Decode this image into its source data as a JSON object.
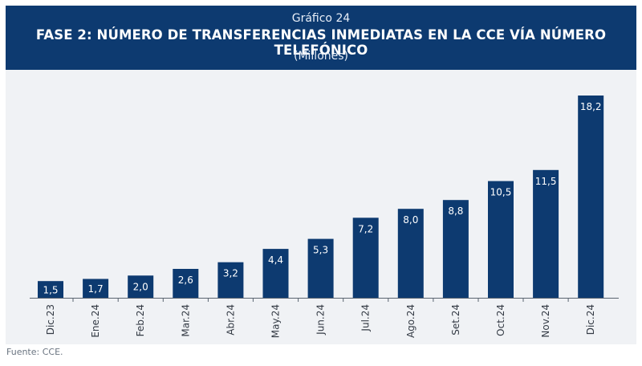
{
  "header": {
    "kicker": "Gráfico 24",
    "title": "FASE 2: NÚMERO DE TRANSFERENCIAS INMEDIATAS EN LA CCE VÍA NÚMERO TELEFÓNICO",
    "subtitle": "(Millones)"
  },
  "source": "Fuente: CCE.",
  "colors": {
    "header_bg": "#0d3a70",
    "bar": "#0d3a70",
    "panel_bg": "#f0f2f5",
    "label_text": "#ffffff"
  },
  "chart_data": {
    "type": "bar",
    "title": "FASE 2: NÚMERO DE TRANSFERENCIAS INMEDIATAS EN LA CCE VÍA NÚMERO TELEFÓNICO",
    "subtitle": "(Millones)",
    "categories": [
      "Dic.23",
      "Ene.24",
      "Feb.24",
      "Mar.24",
      "Abr.24",
      "May.24",
      "Jun.24",
      "Jul.24",
      "Ago.24",
      "Set.24",
      "Oct.24",
      "Nov.24",
      "Dic.24"
    ],
    "values": [
      1.5,
      1.7,
      2.0,
      2.6,
      3.2,
      4.4,
      5.3,
      7.2,
      8.0,
      8.8,
      10.5,
      11.5,
      18.2
    ],
    "value_labels": [
      "1,5",
      "1,7",
      "2,0",
      "2,6",
      "3,2",
      "4,4",
      "5,3",
      "7,2",
      "8,0",
      "8,8",
      "10,5",
      "11,5",
      "18,2"
    ],
    "xlabel": "",
    "ylabel": "",
    "ylim": [
      0,
      20
    ],
    "grid": false,
    "legend": "none",
    "data_labels": "inside-top"
  }
}
